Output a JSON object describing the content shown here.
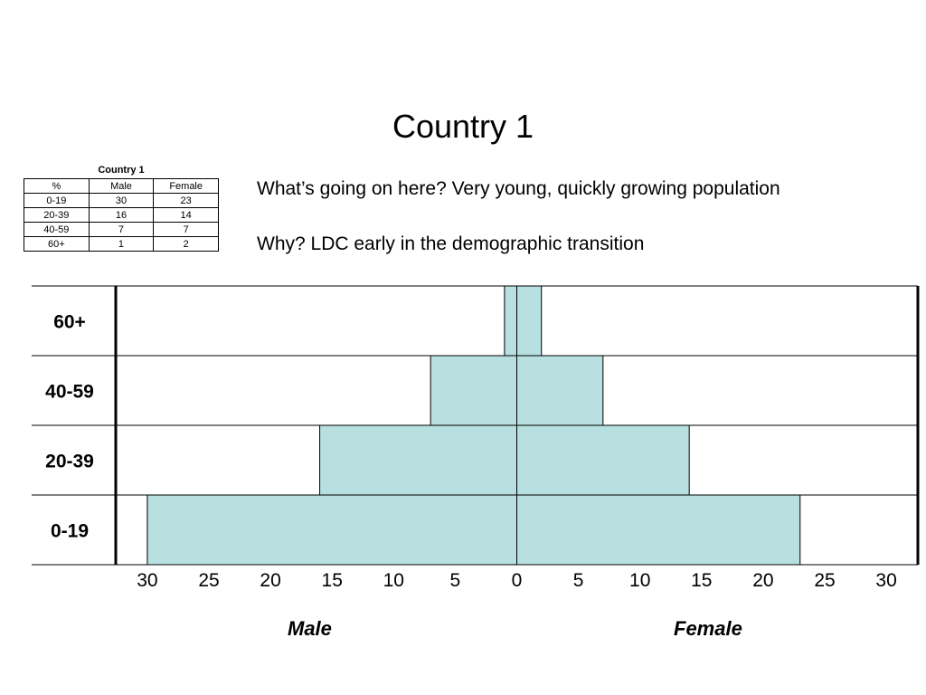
{
  "title": "Country 1",
  "mini_table": {
    "caption": "Country 1",
    "headers": [
      "%",
      "Male",
      "Female"
    ],
    "rows": [
      [
        "0-19",
        "30",
        "23"
      ],
      [
        "20-39",
        "16",
        "14"
      ],
      [
        "40-59",
        "7",
        "7"
      ],
      [
        "60+",
        "1",
        "2"
      ]
    ]
  },
  "notes": {
    "question": "What’s going on here? Very young, quickly growing population",
    "answer": "Why? LDC early in the demographic transition"
  },
  "chart_data": {
    "type": "bar",
    "orientation": "horizontal",
    "categories_top_to_bottom": [
      "60+",
      "40-59",
      "20-39",
      "0-19"
    ],
    "series": [
      {
        "name": "Male",
        "values": [
          1,
          7,
          16,
          30
        ]
      },
      {
        "name": "Female",
        "values": [
          2,
          7,
          14,
          23
        ]
      }
    ],
    "x_ticks": [
      "30",
      "25",
      "20",
      "15",
      "10",
      "5",
      "0",
      "5",
      "10",
      "15",
      "20",
      "25",
      "30"
    ],
    "xlim": [
      -30,
      30
    ],
    "bar_color": "#b9e0e1",
    "grid": true,
    "male_label": "Male",
    "female_label": "Female"
  }
}
